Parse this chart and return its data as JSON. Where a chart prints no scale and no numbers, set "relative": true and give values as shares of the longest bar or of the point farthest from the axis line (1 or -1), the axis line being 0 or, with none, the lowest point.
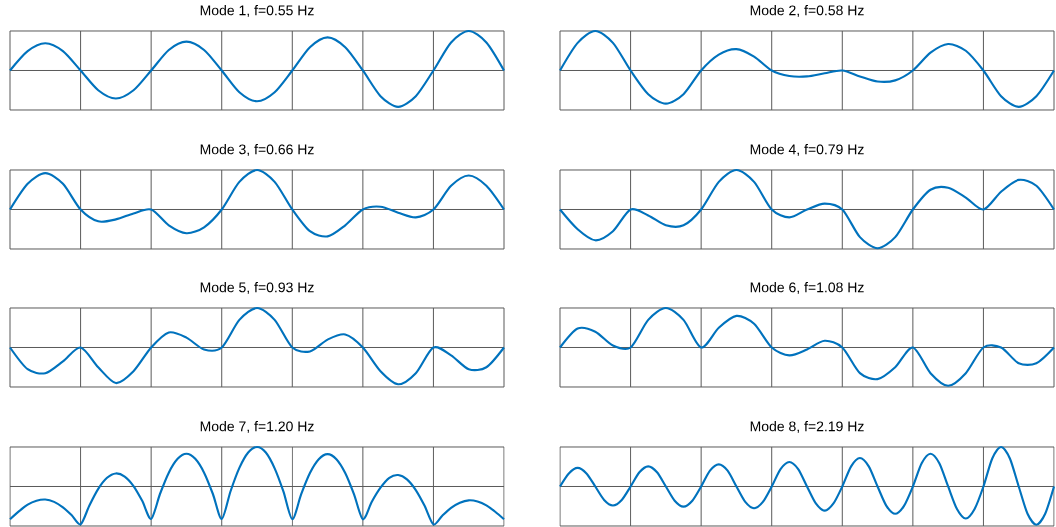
{
  "chart_data": [
    {
      "type": "line",
      "title": "Mode 1, f=0.55 Hz",
      "relative": true,
      "grid": "x",
      "color": "#0072bd",
      "categories": [
        null,
        null,
        null,
        null,
        null,
        null,
        null,
        null,
        null,
        null,
        null,
        null,
        null,
        null,
        null,
        null,
        null,
        null,
        null,
        null,
        null,
        null,
        null,
        null,
        null,
        null,
        null,
        null,
        null
      ],
      "values": [
        0,
        0.49,
        0.69,
        0.49,
        0,
        -0.5,
        -0.71,
        -0.5,
        0,
        0.52,
        0.73,
        0.52,
        0,
        -0.55,
        -0.78,
        -0.55,
        0,
        0.59,
        0.84,
        0.59,
        0,
        -0.65,
        -0.92,
        -0.65,
        0,
        0.71,
        1,
        0.71,
        0
      ]
    },
    {
      "type": "line",
      "title": "Mode 2, f=0.58 Hz",
      "relative": true,
      "grid": "x",
      "color": "#0072bd",
      "categories": [
        null,
        null,
        null,
        null,
        null,
        null,
        null,
        null,
        null,
        null,
        null,
        null,
        null,
        null,
        null,
        null,
        null,
        null,
        null,
        null,
        null,
        null,
        null,
        null,
        null,
        null,
        null,
        null,
        null
      ],
      "values": [
        0,
        0.7,
        1,
        0.7,
        0,
        -0.6,
        -0.84,
        -0.6,
        0,
        0.4,
        0.54,
        0.35,
        0,
        -0.14,
        -0.15,
        -0.07,
        0,
        -0.15,
        -0.28,
        -0.25,
        0,
        0.45,
        0.67,
        0.5,
        0,
        -0.65,
        -0.92,
        -0.65,
        0
      ]
    },
    {
      "type": "line",
      "title": "Mode 3, f=0.66 Hz",
      "relative": true,
      "grid": "x",
      "color": "#0072bd",
      "categories": [
        null,
        null,
        null,
        null,
        null,
        null,
        null,
        null,
        null,
        null,
        null,
        null,
        null,
        null,
        null,
        null,
        null,
        null,
        null,
        null,
        null,
        null,
        null,
        null,
        null,
        null,
        null,
        null,
        null
      ],
      "values": [
        0,
        0.65,
        0.92,
        0.65,
        0,
        -0.3,
        -0.25,
        -0.1,
        0,
        -0.4,
        -0.6,
        -0.45,
        0,
        0.7,
        1,
        0.7,
        0,
        -0.55,
        -0.68,
        -0.4,
        0,
        0.07,
        -0.08,
        -0.2,
        0,
        0.6,
        0.86,
        0.6,
        0
      ]
    },
    {
      "type": "line",
      "title": "Mode 4, f=0.79 Hz",
      "relative": true,
      "grid": "x",
      "color": "#0072bd",
      "categories": [
        null,
        null,
        null,
        null,
        null,
        null,
        null,
        null,
        null,
        null,
        null,
        null,
        null,
        null,
        null,
        null,
        null,
        null,
        null,
        null,
        null,
        null,
        null,
        null,
        null,
        null,
        null,
        null,
        null
      ],
      "values": [
        0,
        -0.5,
        -0.78,
        -0.55,
        0,
        -0.15,
        -0.4,
        -0.4,
        0,
        0.7,
        1,
        0.7,
        0,
        -0.2,
        0,
        0.15,
        0,
        -0.7,
        -0.98,
        -0.7,
        0,
        0.5,
        0.55,
        0.3,
        0,
        0.45,
        0.75,
        0.6,
        0
      ]
    },
    {
      "type": "line",
      "title": "Mode 5, f=0.93 Hz",
      "relative": true,
      "grid": "x",
      "color": "#0072bd",
      "categories": [
        null,
        null,
        null,
        null,
        null,
        null,
        null,
        null,
        null,
        null,
        null,
        null,
        null,
        null,
        null,
        null,
        null,
        null,
        null,
        null,
        null,
        null,
        null,
        null,
        null,
        null,
        null,
        null,
        null
      ],
      "values": [
        0,
        -0.55,
        -0.65,
        -0.35,
        0,
        -0.5,
        -0.9,
        -0.6,
        0,
        0.38,
        0.25,
        -0.05,
        0,
        0.7,
        1,
        0.7,
        0,
        -0.1,
        0.2,
        0.33,
        0,
        -0.6,
        -0.93,
        -0.65,
        0,
        -0.2,
        -0.55,
        -0.5,
        0
      ]
    },
    {
      "type": "line",
      "title": "Mode 6, f=1.08 Hz",
      "relative": true,
      "grid": "x",
      "color": "#0072bd",
      "categories": [
        null,
        null,
        null,
        null,
        null,
        null,
        null,
        null,
        null,
        null,
        null,
        null,
        null,
        null,
        null,
        null,
        null,
        null,
        null,
        null,
        null,
        null,
        null,
        null,
        null,
        null,
        null,
        null,
        null
      ],
      "values": [
        0,
        0.48,
        0.4,
        0.05,
        0,
        0.7,
        1,
        0.7,
        0,
        0.5,
        0.8,
        0.6,
        0,
        -0.2,
        -0.05,
        0.17,
        0,
        -0.65,
        -0.8,
        -0.5,
        0,
        -0.65,
        -0.97,
        -0.65,
        0,
        0,
        -0.4,
        -0.4,
        0
      ]
    },
    {
      "type": "line",
      "title": "Mode 7, f=1.20 Hz",
      "relative": true,
      "grid": "x",
      "color": "#0072bd",
      "categories": [
        null,
        null,
        null,
        null,
        null,
        null,
        null,
        null,
        null,
        null,
        null,
        null,
        null,
        null,
        null,
        null,
        null,
        null,
        null,
        null,
        null,
        null,
        null,
        null,
        null,
        null,
        null,
        null,
        null,
        null,
        null,
        null,
        null,
        null,
        null,
        null,
        null,
        null,
        null,
        null,
        null,
        null,
        null,
        null,
        null,
        null,
        null,
        null,
        null,
        null,
        null,
        null,
        null,
        null,
        null,
        null,
        null
      ],
      "values": [
        -0.83,
        -0.63,
        -0.46,
        -0.36,
        -0.33,
        -0.39,
        -0.53,
        -0.73,
        -0.96,
        -0.48,
        -0.06,
        0.22,
        0.33,
        0.25,
        0.01,
        -0.37,
        -0.82,
        -0.19,
        0.35,
        0.7,
        0.83,
        0.7,
        0.35,
        -0.19,
        -0.82,
        -0.12,
        0.47,
        0.86,
        1,
        0.86,
        0.46,
        -0.13,
        -0.83,
        -0.2,
        0.34,
        0.69,
        0.82,
        0.69,
        0.34,
        -0.2,
        -0.83,
        -0.39,
        -0.03,
        0.22,
        0.29,
        0.18,
        -0.09,
        -0.49,
        -0.96,
        -0.74,
        -0.54,
        -0.41,
        -0.35,
        -0.38,
        -0.48,
        -0.64,
        -0.83
      ]
    },
    {
      "type": "line",
      "title": "Mode 8, f=2.19 Hz",
      "relative": true,
      "grid": "x",
      "color": "#0072bd",
      "categories": [
        null,
        null,
        null,
        null,
        null,
        null,
        null,
        null,
        null,
        null,
        null,
        null,
        null,
        null,
        null,
        null,
        null,
        null,
        null,
        null,
        null,
        null,
        null,
        null,
        null,
        null,
        null,
        null,
        null,
        null,
        null,
        null,
        null,
        null,
        null,
        null,
        null,
        null,
        null,
        null,
        null,
        null,
        null,
        null,
        null,
        null,
        null,
        null,
        null,
        null,
        null,
        null,
        null,
        null,
        null,
        null,
        null
      ],
      "values": [
        0,
        0.33,
        0.47,
        0.33,
        0,
        -0.34,
        -0.48,
        -0.34,
        0,
        0.36,
        0.51,
        0.36,
        0,
        -0.36,
        -0.51,
        -0.36,
        0,
        0.4,
        0.56,
        0.4,
        0,
        -0.39,
        -0.55,
        -0.39,
        0,
        0.44,
        0.62,
        0.44,
        0,
        -0.43,
        -0.61,
        -0.43,
        0,
        0.51,
        0.72,
        0.51,
        0,
        -0.49,
        -0.69,
        -0.49,
        0,
        0.59,
        0.83,
        0.59,
        0,
        -0.57,
        -0.81,
        -0.57,
        0,
        0.71,
        1,
        0.71,
        0,
        -0.69,
        -0.97,
        -0.69,
        0
      ]
    }
  ]
}
